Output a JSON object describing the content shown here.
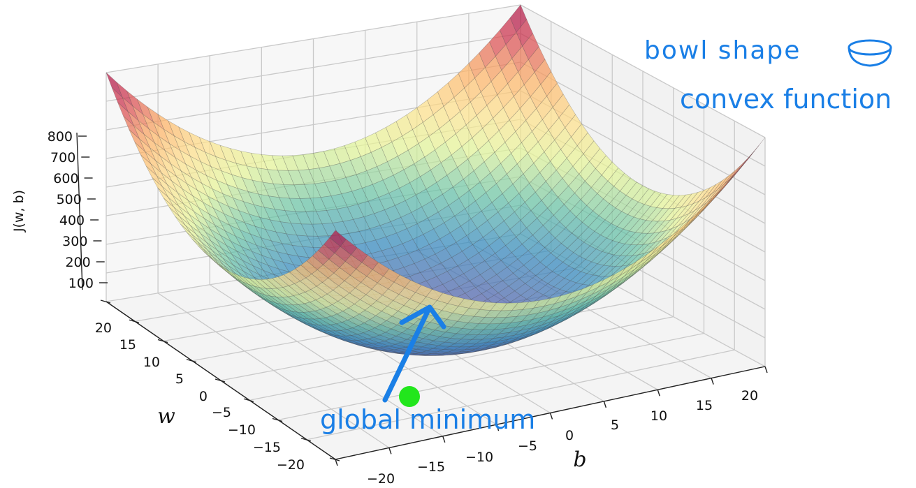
{
  "chart_data": {
    "type": "surface",
    "function": "J(w,b)",
    "zlabel": "J(w, b)",
    "xlabel": "b",
    "ylabel": "w",
    "z_ticks": [
      100,
      200,
      300,
      400,
      500,
      600,
      700,
      800
    ],
    "z_tick_labels": [
      "100",
      "200",
      "300",
      "400",
      "500",
      "600",
      "700",
      "800"
    ],
    "w_ticks": [
      -20,
      -15,
      -10,
      -5,
      0,
      5,
      10,
      15,
      20
    ],
    "w_tick_labels": [
      "−20",
      "−15",
      "−10",
      "−5",
      "0",
      "5",
      "10",
      "15",
      "20"
    ],
    "b_ticks": [
      -20,
      -15,
      -10,
      -5,
      0,
      5,
      10,
      15,
      20
    ],
    "b_tick_labels": [
      "−20",
      "−15",
      "−10",
      "−5",
      "0",
      "5",
      "10",
      "15",
      "20"
    ],
    "w_range": [
      -20,
      20
    ],
    "b_range": [
      -20,
      20
    ],
    "z_range": [
      0,
      800
    ],
    "grid": true,
    "colormap": "Spectral_r",
    "minimum_point": {
      "w": 0,
      "b": 0,
      "z": 0,
      "color": "#22e61c"
    }
  },
  "annotations": {
    "handwritten": "bowl shape",
    "convex": "convex function",
    "global_min": "global minimum"
  },
  "colors": {
    "annotation": "#1a7fe6",
    "minimum_marker": "#22e61c"
  }
}
